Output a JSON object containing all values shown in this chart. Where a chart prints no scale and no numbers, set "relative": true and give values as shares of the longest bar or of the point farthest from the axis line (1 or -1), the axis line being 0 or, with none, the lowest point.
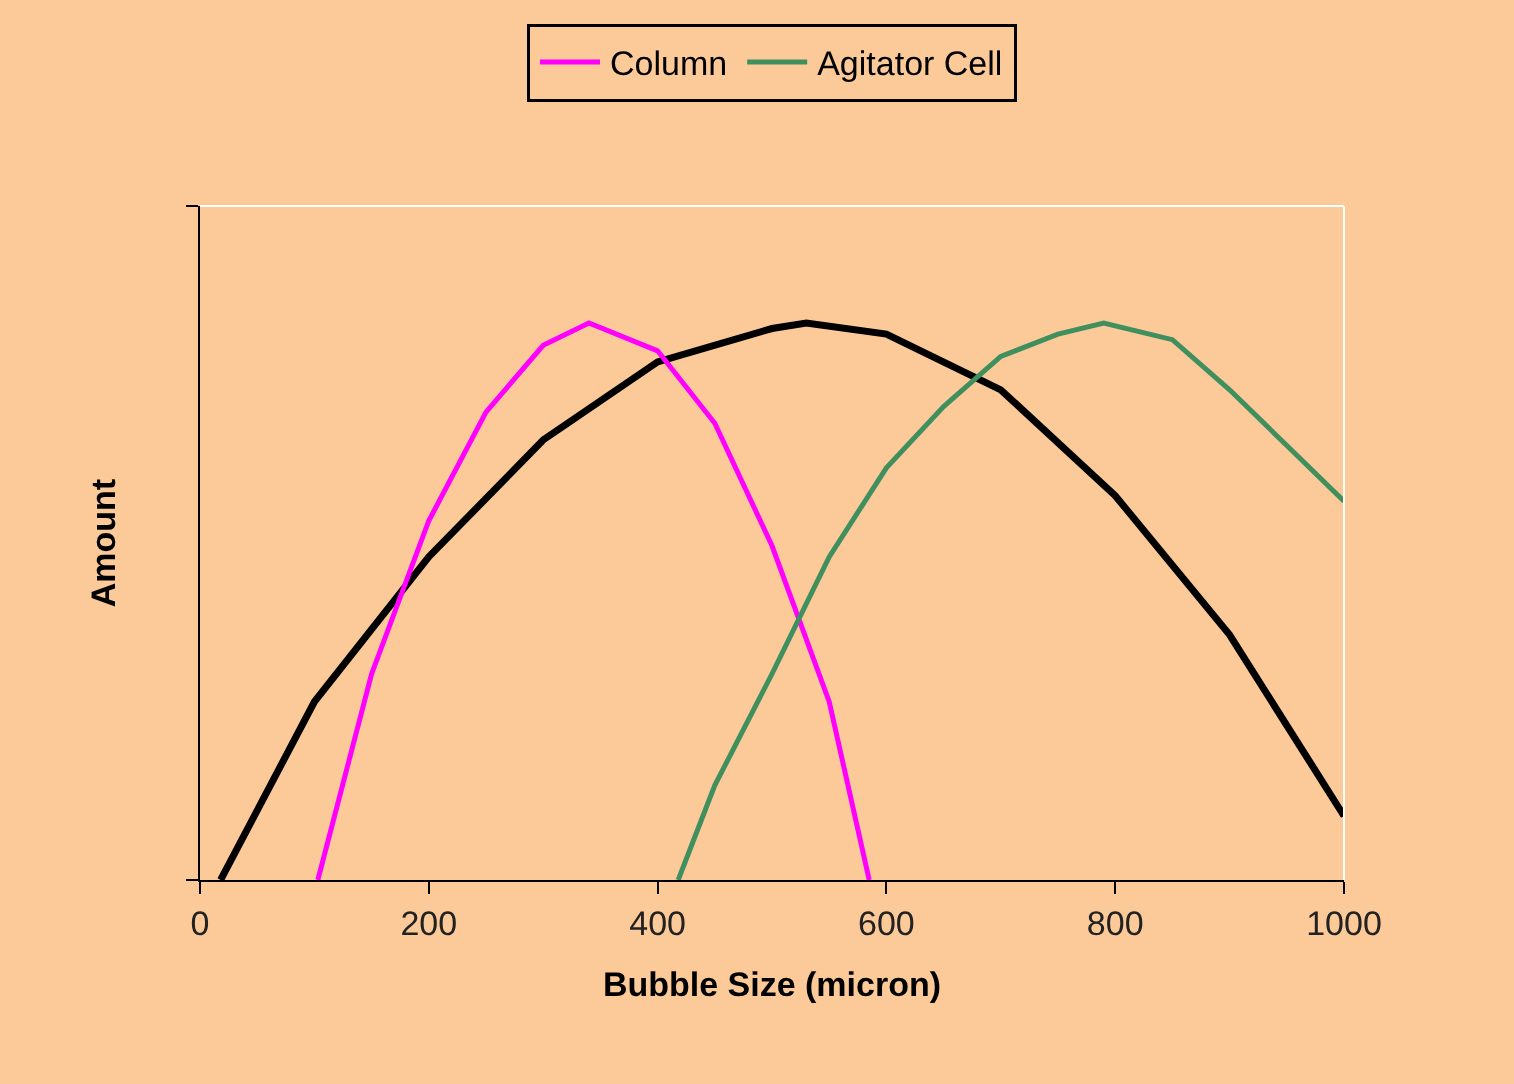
{
  "chart_data": {
    "type": "line",
    "relative": true,
    "xlabel": "Bubble Size (micron)",
    "ylabel": "Amount",
    "xlim": [
      0,
      1000
    ],
    "xticks": [
      0,
      200,
      400,
      600,
      800,
      1000
    ],
    "grid": false,
    "legend": "top",
    "marker": "none",
    "line_style": "solid",
    "tick_labels": "x",
    "series": [
      {
        "color": "#000000",
        "x": [
          18,
          100,
          200,
          300,
          400,
          500,
          530,
          600,
          700,
          800,
          900,
          1000
        ],
        "values": [
          0,
          0.32,
          0.58,
          0.79,
          0.93,
          0.99,
          1.0,
          0.98,
          0.88,
          0.69,
          0.44,
          0.115
        ]
      },
      {
        "name": "Column",
        "color": "#ff00ff",
        "x": [
          103,
          150,
          200,
          250,
          300,
          340,
          400,
          450,
          500,
          550,
          585
        ],
        "values": [
          0,
          0.37,
          0.645,
          0.84,
          0.96,
          1.0,
          0.95,
          0.82,
          0.6,
          0.32,
          0
        ]
      },
      {
        "name": "Agitator Cell",
        "color": "#3f8f5f",
        "x": [
          418,
          450,
          500,
          550,
          600,
          650,
          700,
          750,
          790,
          850,
          900,
          950,
          1000
        ],
        "values": [
          0,
          0.17,
          0.37,
          0.58,
          0.74,
          0.85,
          0.94,
          0.98,
          1.0,
          0.97,
          0.88,
          0.78,
          0.68
        ]
      }
    ]
  }
}
